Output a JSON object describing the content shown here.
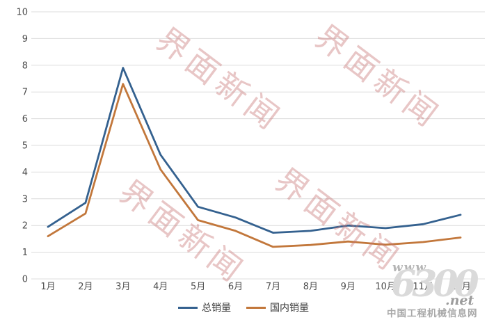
{
  "watermark": {
    "text": "界面新闻",
    "color_rgba": "rgba(198,112,112,0.40)"
  },
  "chart_data": {
    "type": "line",
    "categories": [
      "1月",
      "2月",
      "3月",
      "4月",
      "5月",
      "6月",
      "7月",
      "8月",
      "9月",
      "10月",
      "11月",
      "12月"
    ],
    "series": [
      {
        "name": "总销量",
        "color": "#34618f",
        "values": [
          1.95,
          2.85,
          7.9,
          4.65,
          2.7,
          2.3,
          1.73,
          1.8,
          2.0,
          1.9,
          2.05,
          2.4
        ]
      },
      {
        "name": "国内销量",
        "color": "#c2773b",
        "values": [
          1.6,
          2.45,
          7.3,
          4.1,
          2.2,
          1.8,
          1.2,
          1.27,
          1.4,
          1.28,
          1.38,
          1.55
        ]
      }
    ],
    "title": "",
    "xlabel": "",
    "ylabel": "",
    "ylim": [
      0,
      10
    ],
    "yticks": [
      0,
      1,
      2,
      3,
      4,
      5,
      6,
      7,
      8,
      9,
      10
    ],
    "grid": true,
    "gridline_color": "#dcdcdc",
    "tick_label_color": "#4d4d4d",
    "legend_position": "bottom"
  },
  "site_logo": {
    "www": "www.",
    "number": "6300",
    "net": ".net",
    "caption": "中国工程机械信息网"
  }
}
